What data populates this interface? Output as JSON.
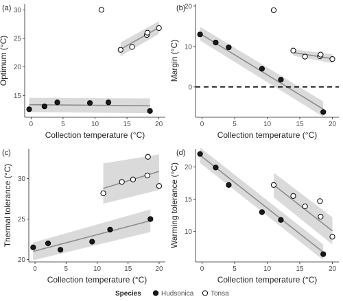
{
  "chart_data": [
    {
      "type": "scatter",
      "tag": "(a)",
      "xlabel": "Collection temperature (°C)",
      "ylabel": "Optimum (°C)",
      "xlim": [
        -1,
        21
      ],
      "ylim": [
        11.2,
        31
      ],
      "xticks": [
        0,
        5,
        10,
        15,
        20
      ],
      "yticks": [
        15,
        20,
        25,
        30
      ],
      "series": [
        {
          "name": "Hudsonica",
          "points": [
            [
              -0.3,
              12.6
            ],
            [
              2.1,
              13.1
            ],
            [
              4.1,
              13.8
            ],
            [
              9.2,
              13.7
            ],
            [
              12.1,
              13.8
            ],
            [
              18.6,
              12.3
            ]
          ],
          "fit": [
            [
              -0.3,
              13.4
            ],
            [
              18.6,
              13.2
            ]
          ],
          "band": {
            "x": [
              -0.3,
              18.6
            ],
            "lower": [
              12.1,
              11.9
            ],
            "upper": [
              14.6,
              14.5
            ]
          }
        },
        {
          "name": "Tonsa",
          "points": [
            [
              11.0,
              30.0
            ],
            [
              14.0,
              23.0
            ],
            [
              15.8,
              23.5
            ],
            [
              18.1,
              25.6
            ],
            [
              18.2,
              26.0
            ],
            [
              20.0,
              26.8
            ]
          ],
          "fit": [
            [
              14.0,
              23.1
            ],
            [
              20.0,
              26.9
            ]
          ],
          "band": {
            "x": [
              14.0,
              20.0
            ],
            "lower": [
              21.9,
              25.8
            ],
            "upper": [
              24.3,
              28.0
            ]
          }
        }
      ],
      "hline": null
    },
    {
      "type": "scatter",
      "tag": "(b)",
      "xlabel": "Collection temperature (°C)",
      "ylabel": "Margin (°C)",
      "xlim": [
        -1,
        21
      ],
      "ylim": [
        -7.5,
        20.5
      ],
      "xticks": [
        0,
        5,
        10,
        15,
        20
      ],
      "yticks": [
        0,
        10,
        20
      ],
      "series": [
        {
          "name": "Hudsonica",
          "points": [
            [
              -0.3,
              13.0
            ],
            [
              2.1,
              11.0
            ],
            [
              4.1,
              9.8
            ],
            [
              9.2,
              4.5
            ],
            [
              12.1,
              1.8
            ],
            [
              18.6,
              -6.2
            ]
          ],
          "fit": [
            [
              -0.3,
              13.2
            ],
            [
              18.6,
              -5.5
            ]
          ],
          "band": {
            "x": [
              -0.3,
              18.6
            ],
            "lower": [
              11.5,
              -7.4
            ],
            "upper": [
              14.9,
              -3.6
            ]
          }
        },
        {
          "name": "Tonsa",
          "points": [
            [
              11.0,
              19.0
            ],
            [
              14.0,
              9.0
            ],
            [
              15.8,
              7.5
            ],
            [
              18.1,
              7.6
            ],
            [
              18.2,
              8.0
            ],
            [
              20.0,
              6.9
            ]
          ],
          "fit": [
            [
              14.0,
              8.5
            ],
            [
              20.0,
              7.0
            ]
          ],
          "band": {
            "x": [
              14.0,
              20.0
            ],
            "lower": [
              7.7,
              5.9
            ],
            "upper": [
              9.3,
              8.1
            ]
          }
        }
      ],
      "hline": 0
    },
    {
      "type": "scatter",
      "tag": "(c)",
      "xlabel": "Collection temperature (°C)",
      "ylabel": "Thermal tolerance (°C)",
      "xlim": [
        -1,
        21
      ],
      "ylim": [
        19.7,
        33.7
      ],
      "xticks": [
        0,
        5,
        10,
        15,
        20
      ],
      "yticks": [
        20,
        25,
        30
      ],
      "series": [
        {
          "name": "Hudsonica",
          "points": [
            [
              -0.3,
              21.5
            ],
            [
              2.1,
              22.0
            ],
            [
              4.1,
              21.2
            ],
            [
              9.2,
              22.2
            ],
            [
              12.1,
              23.7
            ],
            [
              18.6,
              25.0
            ]
          ],
          "fit": [
            [
              -0.3,
              21.0
            ],
            [
              18.6,
              24.8
            ]
          ],
          "band": {
            "x": [
              -0.3,
              18.6
            ],
            "lower": [
              19.9,
              23.4
            ],
            "upper": [
              22.1,
              26.2
            ]
          }
        },
        {
          "name": "Tonsa",
          "points": [
            [
              11.0,
              28.2
            ],
            [
              14.0,
              29.6
            ],
            [
              15.8,
              29.9
            ],
            [
              18.1,
              30.4
            ],
            [
              18.2,
              32.7
            ],
            [
              20.0,
              29.1
            ]
          ],
          "fit": [
            [
              11.0,
              28.8
            ],
            [
              20.0,
              30.9
            ]
          ],
          "band": {
            "x": [
              11.0,
              20.0
            ],
            "lower": [
              26.9,
              28.6
            ],
            "upper": [
              31.9,
              33.0
            ]
          }
        }
      ],
      "hline": null
    },
    {
      "type": "scatter",
      "tag": "(d)",
      "xlabel": "Collection temperature (°C)",
      "ylabel": "Warming tolerance (°C)",
      "xlim": [
        -1,
        21
      ],
      "ylim": [
        5.3,
        22.8
      ],
      "xticks": [
        0,
        5,
        10,
        15,
        20
      ],
      "yticks": [
        10,
        15,
        20
      ],
      "series": [
        {
          "name": "Hudsonica",
          "points": [
            [
              -0.3,
              22.0
            ],
            [
              2.1,
              19.9
            ],
            [
              4.1,
              17.2
            ],
            [
              9.2,
              13.0
            ],
            [
              12.1,
              11.8
            ],
            [
              18.6,
              6.5
            ]
          ],
          "fit": [
            [
              -0.3,
              21.8
            ],
            [
              18.6,
              6.8
            ]
          ],
          "band": {
            "x": [
              -0.3,
              18.6
            ],
            "lower": [
              20.6,
              5.6
            ],
            "upper": [
              23.0,
              8.0
            ]
          }
        },
        {
          "name": "Tonsa",
          "points": [
            [
              11.0,
              17.2
            ],
            [
              14.0,
              15.5
            ],
            [
              15.8,
              13.9
            ],
            [
              18.1,
              14.7
            ],
            [
              18.2,
              12.3
            ],
            [
              20.0,
              9.2
            ]
          ],
          "fit": [
            [
              11.0,
              17.2
            ],
            [
              20.0,
              10.1
            ]
          ],
          "band": {
            "x": [
              11.0,
              20.0
            ],
            "lower": [
              15.3,
              8.0
            ],
            "upper": [
              19.1,
              12.2
            ]
          }
        }
      ],
      "hline": null
    }
  ],
  "legend": {
    "title": "Species",
    "items": [
      {
        "label": "Hudsonica",
        "marker": "filled-circle"
      },
      {
        "label": "Tonsa",
        "marker": "open-circle"
      }
    ]
  },
  "colors": {
    "band": "#d3d3d3",
    "fit_line": "#8c8c8c",
    "point_stroke": "#000000",
    "hudsonica_fill": "#1a1a1a",
    "tonsa_fill": "#ffffff",
    "axis": "#222222",
    "hline": "#000000"
  }
}
